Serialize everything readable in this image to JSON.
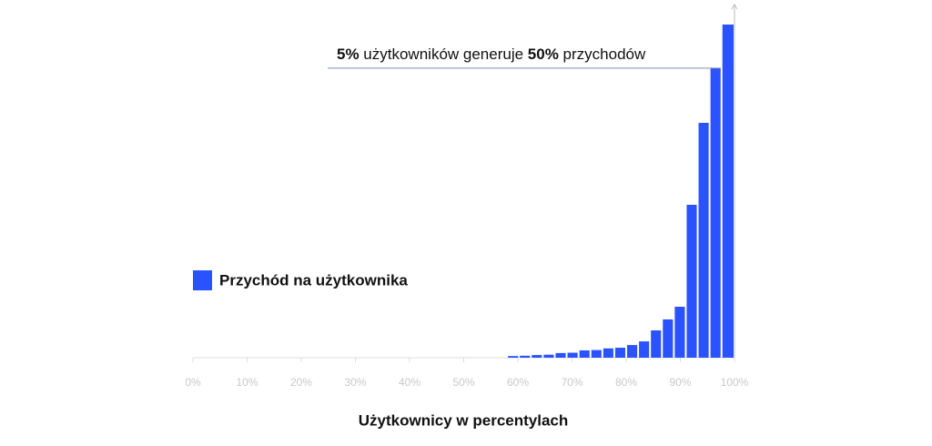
{
  "chart_data": {
    "type": "histogram",
    "x_label": "Użytkownicy w percentylach",
    "annotation": [
      {
        "text": "5%",
        "bold": true
      },
      {
        "text": " użytkowników generuje ",
        "bold": false
      },
      {
        "text": "50%",
        "bold": true
      },
      {
        "text": " przychodów",
        "bold": false
      }
    ],
    "bins": [
      58.0,
      60.2,
      62.4,
      64.6,
      66.8,
      69.0,
      71.2,
      73.4,
      75.6,
      77.8,
      80.0,
      82.2,
      84.4,
      86.6,
      88.8,
      91.0,
      93.2,
      95.4,
      97.6,
      100
    ],
    "series": [
      {
        "name": "Przychód na użytkownika",
        "color": "#2b52ff",
        "values": [
          0.5,
          0.6,
          0.8,
          0.9,
          1.4,
          1.5,
          2.2,
          2.3,
          2.8,
          3.0,
          3.8,
          4.9,
          8.2,
          11.5,
          15.3,
          45.9,
          70.5,
          86.9,
          100
        ]
      }
    ],
    "xlim": [
      0,
      100
    ],
    "xticks": [
      {
        "value": 0,
        "label": "0%"
      },
      {
        "value": 10,
        "label": "10%"
      },
      {
        "value": 20,
        "label": "20%"
      },
      {
        "value": 30,
        "label": "30%"
      },
      {
        "value": 40,
        "label": "40%"
      },
      {
        "value": 50,
        "label": "50%"
      },
      {
        "value": 60,
        "label": "60%"
      },
      {
        "value": 70,
        "label": "70%"
      },
      {
        "value": 80,
        "label": "80%"
      },
      {
        "value": 90,
        "label": "90%"
      },
      {
        "value": 100,
        "label": "100%"
      }
    ],
    "ylim": [
      0,
      106
    ],
    "legend": "left"
  }
}
